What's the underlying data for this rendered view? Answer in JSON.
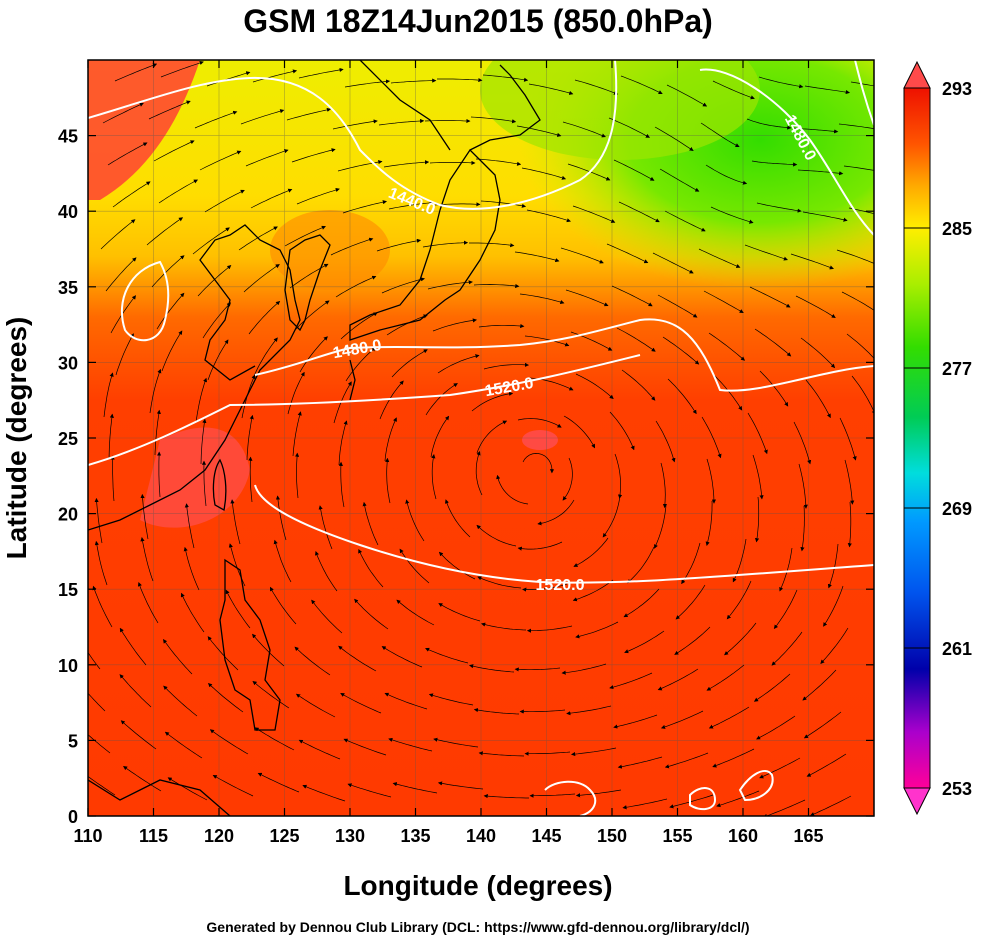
{
  "title": "GSM 18Z14Jun2015 (850.0hPa)",
  "xlabel": "Longitude (degrees)",
  "ylabel": "Latitude  (degrees)",
  "footer": "Generated by Dennou Club Library (DCL: https://www.gfd-dennou.org/library/dcl/)",
  "map_data": {
    "type": "filled-contour-map-with-streamlines",
    "field": "temperature (K)",
    "xlim": [
      110,
      170
    ],
    "ylim": [
      0,
      50
    ],
    "x_ticks": [
      "110",
      "115",
      "120",
      "125",
      "130",
      "135",
      "140",
      "145",
      "150",
      "155",
      "160",
      "165"
    ],
    "y_ticks": [
      "0",
      "5",
      "10",
      "15",
      "20",
      "25",
      "30",
      "35",
      "40",
      "45"
    ],
    "colorbar": {
      "min": 253,
      "max": 293,
      "labels": [
        "293",
        "285",
        "277",
        "269",
        "261",
        "253"
      ],
      "colors": [
        "#ff0099",
        "#9900cc",
        "#0000aa",
        "#0055dd",
        "#0099ff",
        "#00dddd",
        "#00cc66",
        "#22dd00",
        "#99ee00",
        "#ffee00",
        "#ffaa00",
        "#ff5500",
        "#ff2a00",
        "#ee1100"
      ]
    },
    "contours": [
      {
        "label": "1440.0"
      },
      {
        "label": "1480.0"
      },
      {
        "label": "1520.0"
      },
      {
        "label": "1520.0"
      },
      {
        "label": "1480.0"
      }
    ]
  }
}
